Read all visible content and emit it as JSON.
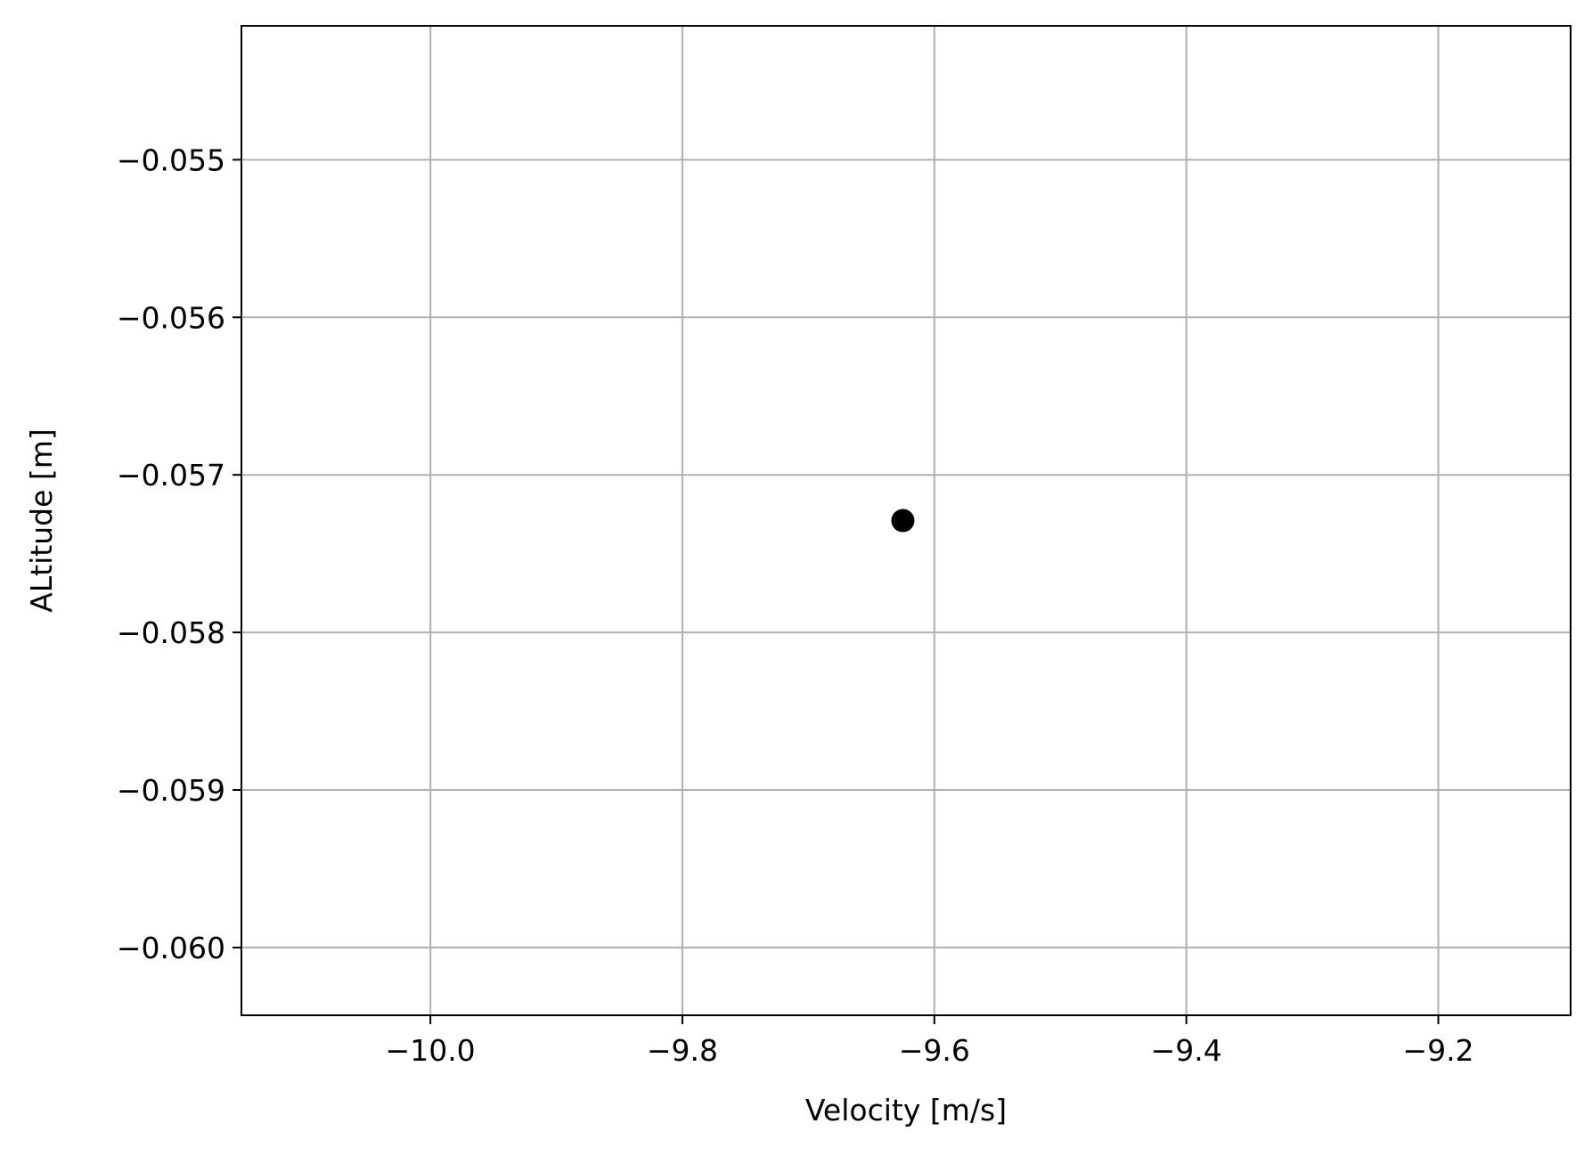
{
  "chart_data": {
    "type": "scatter",
    "title": "",
    "xlabel": "Velocity [m/s]",
    "ylabel": "ALtitude [m]",
    "xlim": [
      -10.15,
      -9.095
    ],
    "ylim": [
      -0.06043,
      -0.05415
    ],
    "x_ticks": [
      -10.0,
      -9.8,
      -9.6,
      -9.4,
      -9.2
    ],
    "x_tick_labels": [
      "−10.0",
      "−9.8",
      "−9.6",
      "−9.4",
      "−9.2"
    ],
    "y_ticks": [
      -0.055,
      -0.056,
      -0.057,
      -0.058,
      -0.059,
      -0.06
    ],
    "y_tick_labels": [
      "−0.055",
      "−0.056",
      "−0.057",
      "−0.058",
      "−0.059",
      "−0.060"
    ],
    "grid": true,
    "series": [
      {
        "points": [
          {
            "x": -9.625,
            "y": -0.05729
          }
        ],
        "color": "#000000"
      }
    ]
  }
}
